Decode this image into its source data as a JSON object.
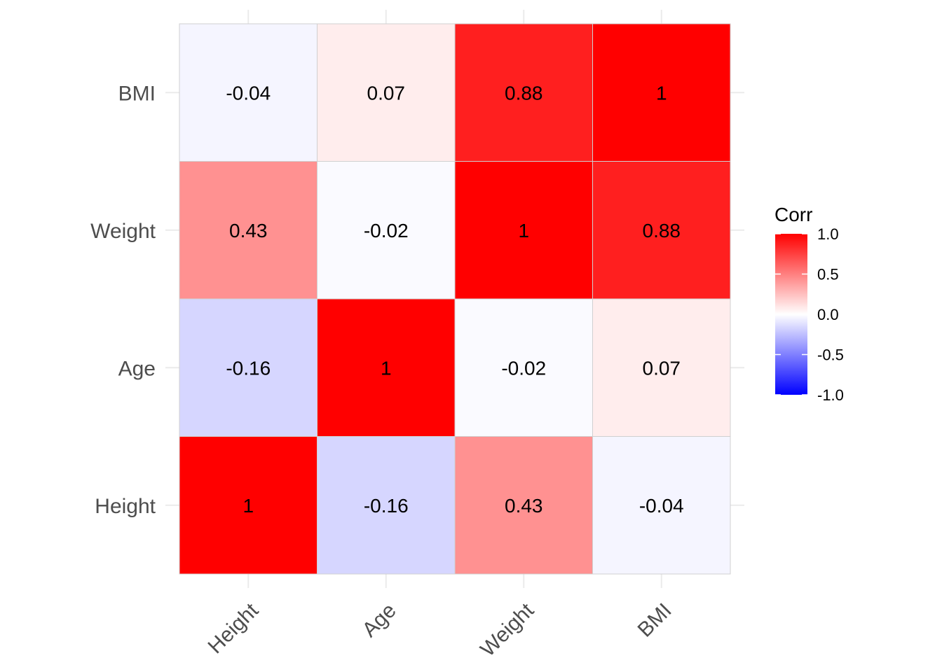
{
  "chart_data": {
    "type": "heatmap",
    "title": "",
    "xlabel": "",
    "ylabel": "",
    "x": [
      "Height",
      "Age",
      "Weight",
      "BMI"
    ],
    "y": [
      "Height",
      "Age",
      "Weight",
      "BMI"
    ],
    "values": [
      [
        1,
        -0.16,
        0.43,
        -0.04
      ],
      [
        -0.16,
        1,
        -0.02,
        0.07
      ],
      [
        0.43,
        -0.02,
        1,
        0.88
      ],
      [
        -0.04,
        0.07,
        0.88,
        1
      ]
    ],
    "labels": [
      [
        "1",
        "-0.16",
        "0.43",
        "-0.04"
      ],
      [
        "-0.16",
        "1",
        "-0.02",
        "0.07"
      ],
      [
        "0.43",
        "-0.02",
        "1",
        "0.88"
      ],
      [
        "-0.04",
        "0.07",
        "0.88",
        "1"
      ]
    ],
    "legend": {
      "title": "Corr",
      "position": "right",
      "breaks": [
        1.0,
        0.5,
        0.0,
        -0.5,
        -1.0
      ],
      "break_labels": [
        "1.0",
        "0.5",
        "0.0",
        "-0.5",
        "-1.0"
      ],
      "limits": [
        -1,
        1
      ]
    },
    "colors": {
      "low": "#0000ff",
      "mid": "#ffffff",
      "high": "#ff0000"
    },
    "grid": true
  }
}
